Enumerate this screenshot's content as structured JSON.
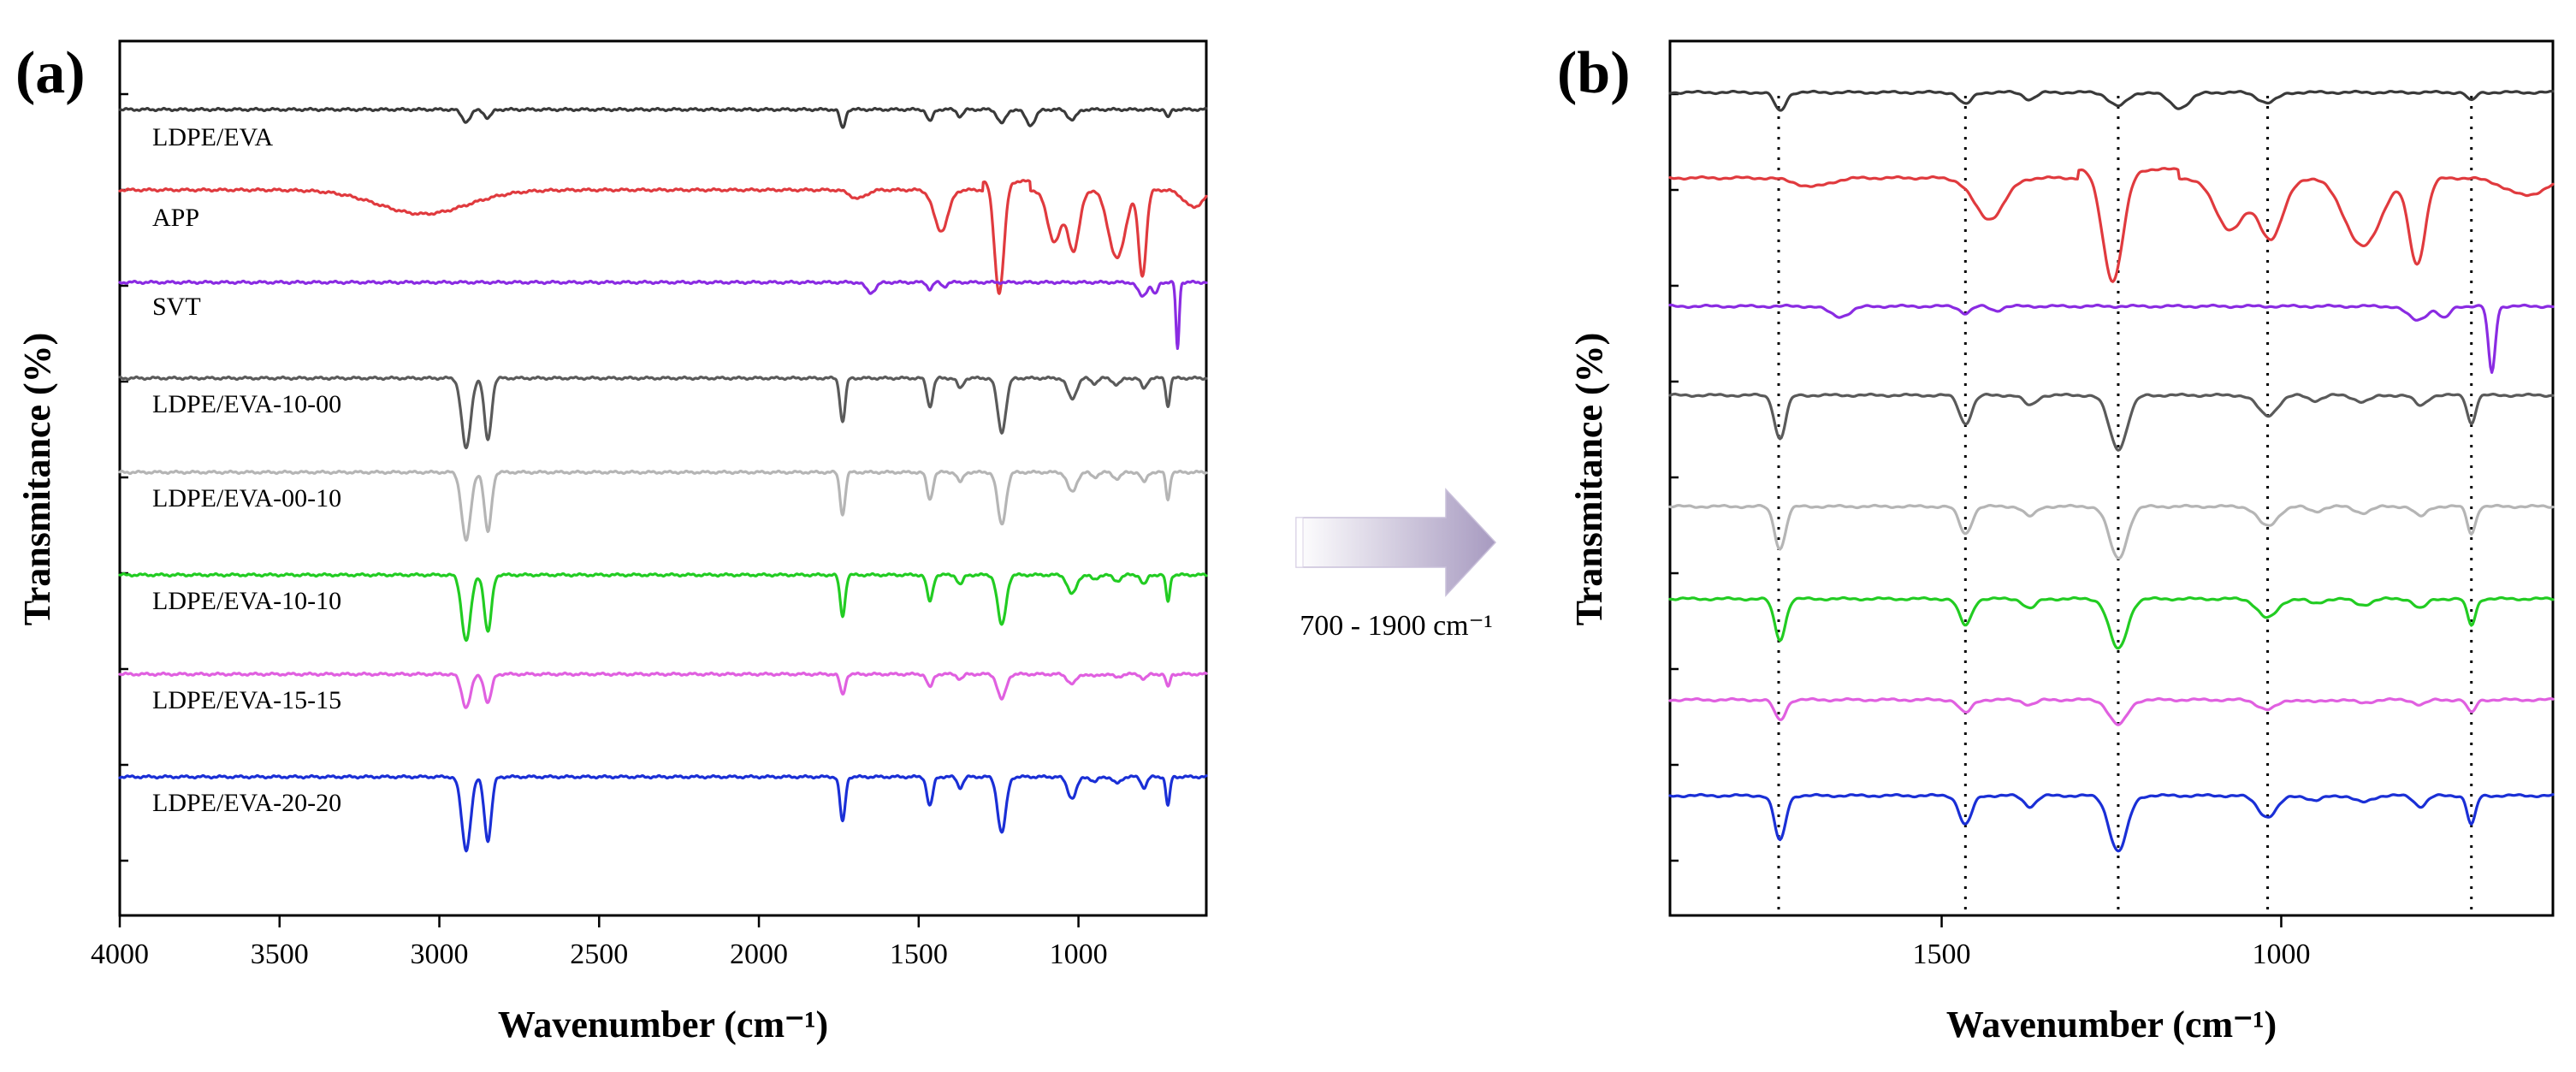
{
  "arrow": {
    "label": "700 - 1900 cm⁻¹"
  },
  "chart_data": [
    {
      "panel": "(a)",
      "type": "line",
      "title": "",
      "xlabel": "Wavenumber (cm⁻¹)",
      "ylabel": "Transmitance (%)",
      "xlim": [
        4000,
        600
      ],
      "x_inverted": true,
      "xticks": [
        4000,
        3500,
        3000,
        2500,
        2000,
        1500,
        1000
      ],
      "grid": false,
      "series": [
        {
          "name": "LDPE/EVA",
          "label": "LDPE/EVA",
          "color": "#3a3a3a"
        },
        {
          "name": "APP",
          "label": "APP",
          "color": "#e03a3e"
        },
        {
          "name": "SVT",
          "label": "SVT",
          "color": "#8a2be2"
        },
        {
          "name": "LDPE/EVA-10-00",
          "label": "LDPE/EVA-10-00",
          "color": "#5a5a5a"
        },
        {
          "name": "LDPE/EVA-00-10",
          "label": "LDPE/EVA-00-10",
          "color": "#b5b5b5"
        },
        {
          "name": "LDPE/EVA-10-10",
          "label": "LDPE/EVA-10-10",
          "color": "#22cc22"
        },
        {
          "name": "LDPE/EVA-15-15",
          "label": "LDPE/EVA-15-15",
          "color": "#e060e0"
        },
        {
          "name": "LDPE/EVA-20-20",
          "label": "LDPE/EVA-20-20",
          "color": "#1a2fd6"
        }
      ]
    },
    {
      "panel": "(b)",
      "type": "line",
      "title": "",
      "xlabel": "Wavenumber (cm⁻¹)",
      "ylabel": "Transmitance (%)",
      "xlim": [
        1900,
        600
      ],
      "x_inverted": true,
      "xticks": [
        1500,
        1000
      ],
      "grid": false,
      "guide_lines": [
        1740,
        1465,
        1240,
        1020,
        720
      ],
      "series": [
        {
          "name": "LDPE/EVA",
          "color": "#3a3a3a"
        },
        {
          "name": "APP",
          "color": "#e03a3e"
        },
        {
          "name": "SVT",
          "color": "#8a2be2"
        },
        {
          "name": "LDPE/EVA-10-00",
          "color": "#5a5a5a"
        },
        {
          "name": "LDPE/EVA-00-10",
          "color": "#b5b5b5"
        },
        {
          "name": "LDPE/EVA-10-10",
          "color": "#22cc22"
        },
        {
          "name": "LDPE/EVA-15-15",
          "color": "#e060e0"
        },
        {
          "name": "LDPE/EVA-20-20",
          "color": "#1a2fd6"
        }
      ]
    }
  ]
}
